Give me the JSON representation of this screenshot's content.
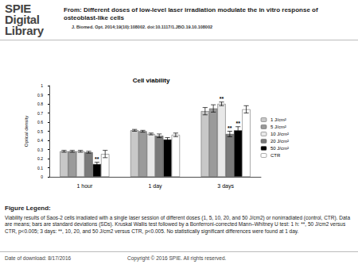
{
  "page": {
    "logo": [
      "SPIE",
      "Digital",
      "Library"
    ],
    "header": "From: Different doses of low-level laser irradiation modulate the in vitro response of osteoblast-like cells",
    "citation": "J. Biomed. Opt. 2014;19(10):108002. doi:10.1117/1.JBO.19.10.108002",
    "figure_legend_heading": "Figure Legend:",
    "figure_legend": "Viability results of Saos-2 cells irradiated with a single laser session of different doses (1, 5, 10, 20, and 50 J/cm2) or nonirradiated (control, CTR). Data are means; bars are standard deviations (SDs). Kruskal Wallis test followed by a Bonferroni-corrected Mann–Whitney U test: 1 h: **, 50 J/cm2 versus CTR, p<0.005; 3 days: **, 10, 20, and 50 J/cm2 versus CTR, p<0.005. No statistically significant differences were found at 1 day.",
    "footer_date": "Date of download:  8/17/2016",
    "footer_copyright": "Copyright © 2016 SPIE. All rights reserved."
  },
  "chart_data": {
    "type": "bar",
    "title": "Cell viability",
    "y_label": "Optical density",
    "categories": [
      "1 hour",
      "1 day",
      "3 days"
    ],
    "series": [
      {
        "name": "1 J/cm²",
        "color": "#c8c8c8",
        "values": [
          0.28,
          0.51,
          0.72
        ],
        "errors": [
          0.01,
          0.01,
          0.04
        ],
        "annotations": [
          null,
          null,
          null
        ]
      },
      {
        "name": "5 J/cm²",
        "color": "#9a9a9a",
        "values": [
          0.28,
          0.5,
          0.75
        ],
        "errors": [
          0.01,
          0.01,
          0.04
        ],
        "annotations": [
          null,
          null,
          null
        ]
      },
      {
        "name": "10 J/cm²",
        "color": "#e8e8e8",
        "values": [
          0.28,
          0.47,
          0.8
        ],
        "errors": [
          0.01,
          0.01,
          0.02
        ],
        "annotations": [
          null,
          null,
          "**"
        ]
      },
      {
        "name": "20 J/cm²",
        "color": "#7a7a7a",
        "values": [
          0.27,
          0.45,
          0.47
        ],
        "errors": [
          0.01,
          0.02,
          0.03
        ],
        "annotations": [
          null,
          null,
          "**"
        ]
      },
      {
        "name": "50 J/cm²",
        "color": "#000000",
        "values": [
          0.14,
          0.41,
          0.51
        ],
        "errors": [
          0.02,
          0.02,
          0.04
        ],
        "annotations": [
          "**",
          null,
          "**"
        ]
      },
      {
        "name": "CTR",
        "color": "#ffffff",
        "values": [
          0.25,
          0.46,
          0.74
        ],
        "errors": [
          0.04,
          0.02,
          0.04
        ],
        "annotations": [
          null,
          null,
          null
        ]
      }
    ],
    "ylim": [
      0,
      1
    ],
    "yticks": [
      0,
      0.1,
      0.2,
      0.3,
      0.4,
      0.5,
      0.6,
      0.7,
      0.8,
      0.9,
      1
    ],
    "legend": "right",
    "grid": false
  }
}
